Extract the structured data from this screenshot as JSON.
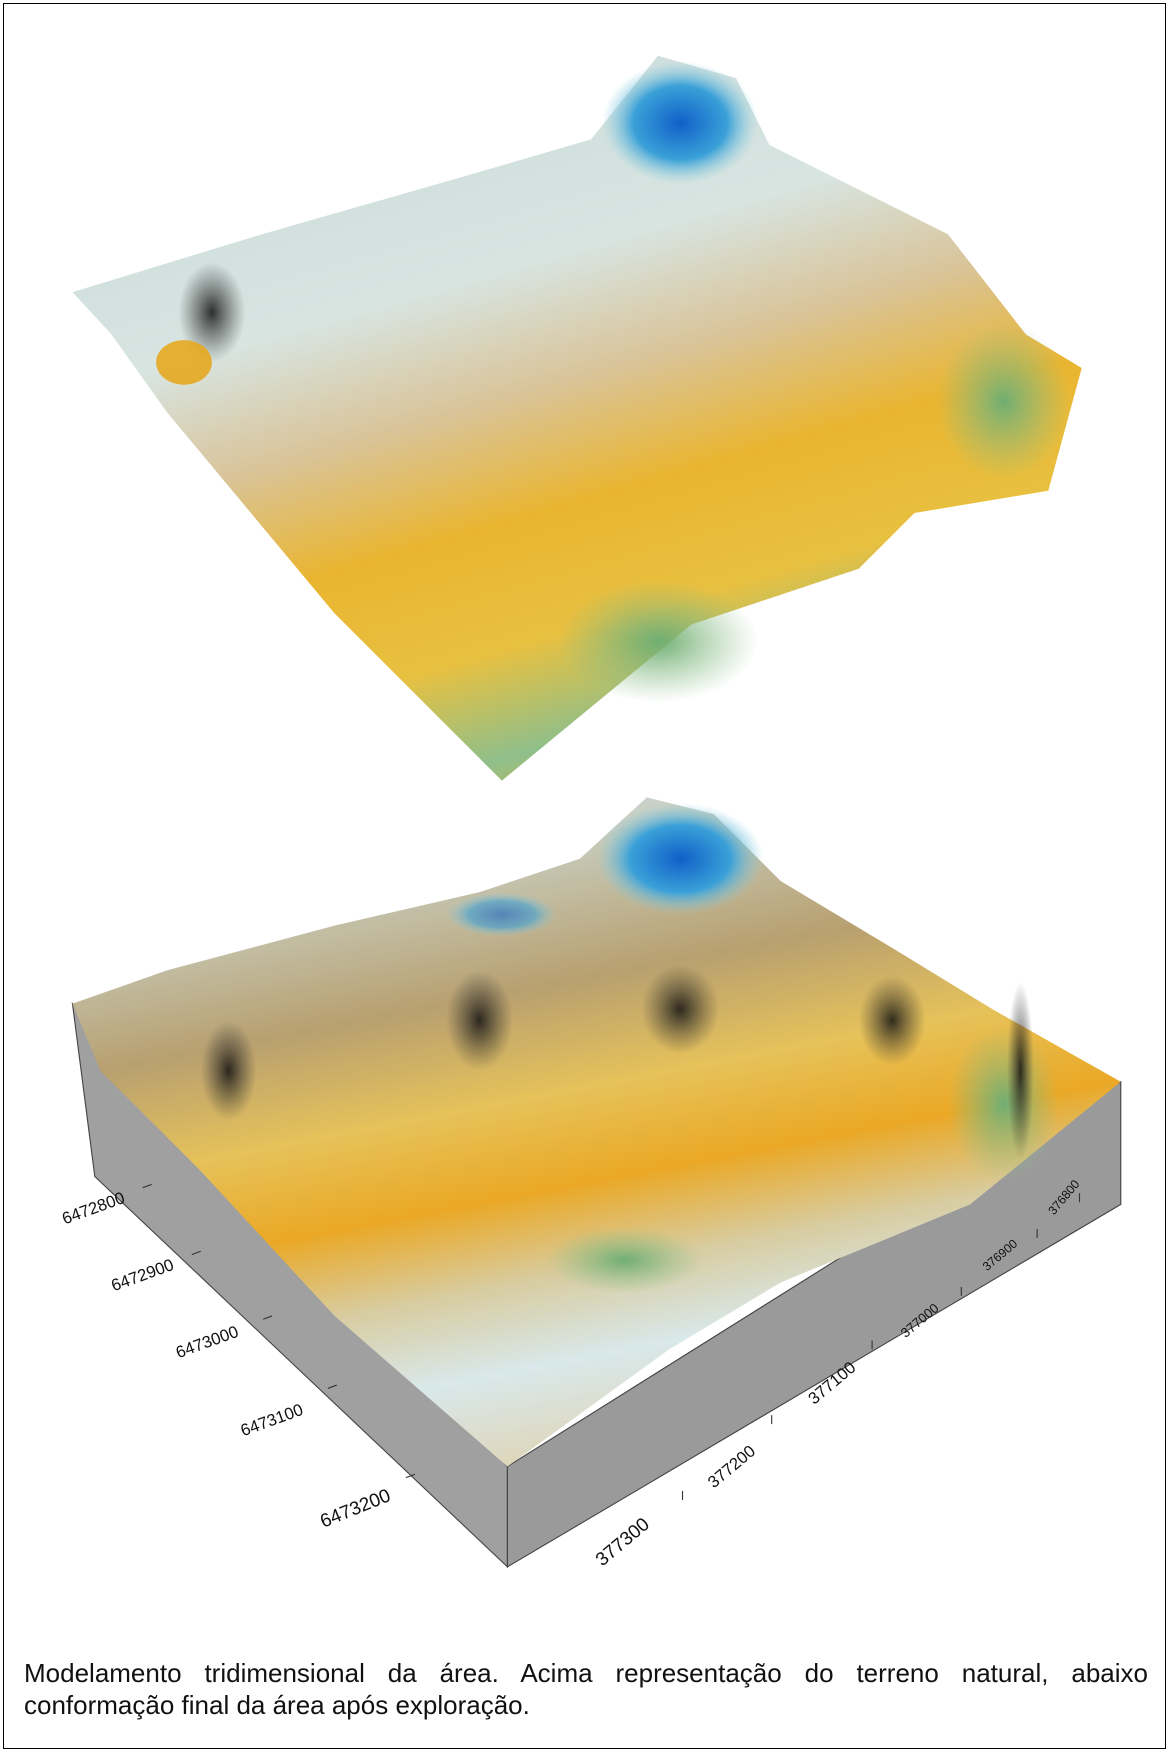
{
  "figure": {
    "northing_labels": [
      "6472800",
      "6472900",
      "6473000",
      "6473100",
      "6473200"
    ],
    "easting_labels": [
      "377300",
      "377200",
      "377100",
      "377000",
      "376900",
      "376800"
    ],
    "caption": "Modelamento tridimensional da área. Acima representação do terreno natural, abaixo conformação final da área após exploração."
  }
}
